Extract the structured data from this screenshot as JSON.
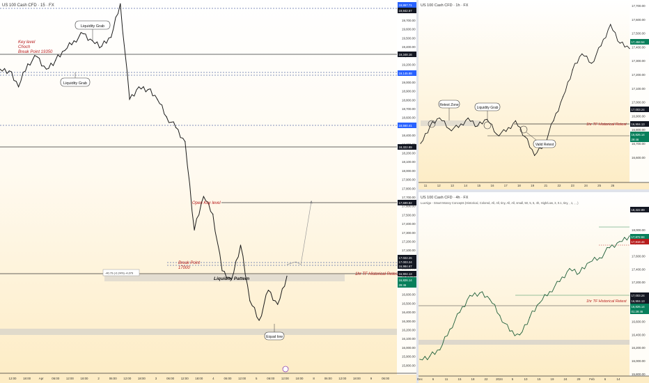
{
  "colors": {
    "candle": "#1a1a1a",
    "line": "#2b2b2b",
    "dashed_blue": "#5b6fa8",
    "red_text": "#b71c1c",
    "blue_tag": "#2962ff",
    "green_tag": "#087f5b",
    "dark_tag": "#131722",
    "zone": "#c8c8c8",
    "green_line": "#2e8b57"
  },
  "main": {
    "title": "US 100 Cash CFD · 15 · FX",
    "yticks": [
      "19,700.00",
      "19,600.00",
      "19,500.00",
      "19,400.00",
      "19,300.00",
      "19,200.00",
      "19,100.00",
      "19,000.00",
      "18,900.00",
      "18,800.00",
      "18,700.00",
      "18,600.00",
      "18,500.00",
      "18,400.00",
      "18,300.00",
      "18,200.00",
      "18,100.00",
      "18,000.00",
      "17,900.00",
      "17,800.00",
      "17,700.00",
      "17,600.00",
      "17,500.00",
      "17,400.00",
      "17,300.00",
      "17,200.00",
      "17,100.00",
      "17,000.00",
      "16,900.00",
      "16,800.00",
      "16,700.00",
      "16,600.00",
      "16,500.00",
      "16,400.00",
      "16,300.00",
      "16,200.00",
      "16,100.00",
      "16,000.00",
      "15,900.00",
      "15,800.00"
    ],
    "xticks": [
      "12:00",
      "18:00",
      "Apr",
      "06:00",
      "12:00",
      "18:00",
      "2",
      "06:00",
      "12:00",
      "18:00",
      "3",
      "06:00",
      "12:00",
      "18:00",
      "4",
      "06:00",
      "12:00",
      "5",
      "06:00",
      "12:00",
      "18:00",
      "8",
      "06:00",
      "12:00",
      "18:00",
      "9",
      "06:00"
    ],
    "price_tags": {
      "t1": "19,867.71",
      "t2": "19,842.57",
      "t3": "19,348.16",
      "t4": "19,145.88",
      "t5": "18,560.41",
      "t6": "18,322.89",
      "t7": "17,699.82",
      "t8": "17,022.26",
      "t9": "17,003.24",
      "t10": "16,984.67",
      "t11": "16,904.13",
      "t12": "16,826.14",
      "t12b": "29:46"
    },
    "annotations": {
      "liq_grab_top": "Liquidity Grab",
      "liq_grab_left": "Liquidity Grab",
      "key_level": "Key level",
      "choch": "Choch",
      "break_point": "Break Point  19350",
      "open_key_level": "Open Key level",
      "break_point2": "Break Point",
      "break_val": "17000",
      "hist_retest": "1hr TF Historical Retest",
      "liq_pattern": "Liquidity Pattern",
      "equal_low": "Equal low",
      "measure": "-40.79 (-0.24%) -4,079"
    }
  },
  "top_right": {
    "title": "US 100 Cash CFD · 1h · FX",
    "yticks": [
      "17,700.00",
      "17,600.00",
      "17,500.00",
      "17,400.00",
      "17,300.00",
      "17,200.00",
      "17,100.00",
      "17,000.00",
      "16,900.00",
      "16,800.00",
      "16,700.00",
      "16,600.00"
    ],
    "xticks": [
      "11",
      "12",
      "13",
      "14",
      "15",
      "16",
      "17",
      "18",
      "19",
      "21",
      "22",
      "23",
      "24",
      "25",
      "26"
    ],
    "price_tags": {
      "a": "17,458.54",
      "b": "17,003.24",
      "c": "16,904.13",
      "d": "16,826.14",
      "d2": "29:46"
    },
    "annotations": {
      "retest_zone": "Retest Zone",
      "liq_grab": "Liquidity Grab",
      "valid_retest": "Valid Retest",
      "hist_retest": "1hr TF Historical Retest"
    }
  },
  "bottom_right": {
    "title": "US 100 Cash CFD · 4h · FX",
    "subtitle": "LuxAlgo - Smart Money Concepts (Historical, Colored, All, All, tiny, All, All, small, 50, 5, 5, 4h, High/Low, 3, 0.1, tiny, , 1, ,  ,  )",
    "yticks": [
      "18,000.00",
      "17,800.00",
      "17,600.00",
      "17,400.00",
      "17,200.00",
      "17,000.00",
      "16,800.00",
      "16,600.00",
      "16,400.00",
      "16,200.00",
      "16,000.00",
      "15,800.00"
    ],
    "xticks": [
      "Dec",
      "6",
      "11",
      "15",
      "18",
      "22",
      "2024",
      "5",
      "10",
      "15",
      "19",
      "24",
      "29",
      "Feb",
      "6",
      "14"
    ],
    "price_tags": {
      "a": "18,322.89",
      "b": "17,872.84",
      "c": "17,818.44",
      "d": "17,003.24",
      "e": "16,904.13",
      "f": "16,826.14",
      "f2": "01:29:46"
    },
    "annotations": {
      "hist_retest": "1hr TF Historical Retest"
    }
  },
  "chart_data": [
    {
      "type": "line",
      "title": "US 100 Cash CFD · 15 · FX",
      "ylim": [
        15800,
        19800
      ],
      "x": [
        0,
        2,
        4,
        6,
        8,
        10,
        12,
        14,
        16,
        18,
        20,
        22,
        24,
        26,
        28,
        30,
        32,
        34,
        36,
        38,
        40,
        42,
        44,
        46,
        48,
        50,
        52,
        54,
        56,
        58,
        60,
        62
      ],
      "values": [
        19160,
        19140,
        18960,
        19220,
        19300,
        19160,
        19260,
        19370,
        19480,
        19560,
        19480,
        19420,
        19520,
        19900,
        18820,
        18960,
        18930,
        18820,
        18620,
        18500,
        18340,
        17340,
        17720,
        17520,
        16880,
        16780,
        17170,
        16540,
        16320,
        16660,
        16500,
        16820
      ]
    },
    {
      "type": "line",
      "title": "US 100 Cash CFD · 1h · FX",
      "ylim": [
        16500,
        17750
      ],
      "x": [
        0,
        1,
        2,
        3,
        4,
        5,
        6,
        7,
        8,
        9,
        10,
        11,
        12,
        13,
        14,
        15,
        16,
        17,
        18,
        19,
        20,
        21,
        22
      ],
      "values": [
        16750,
        16880,
        16940,
        16860,
        16870,
        16940,
        16880,
        16930,
        16820,
        16840,
        16920,
        16800,
        16660,
        16740,
        16920,
        17100,
        17300,
        17420,
        17350,
        17480,
        17640,
        17500,
        17460
      ]
    },
    {
      "type": "line",
      "title": "US 100 Cash CFD · 4h · FX",
      "ylim": [
        15700,
        18100
      ],
      "x": [
        0,
        1,
        2,
        3,
        4,
        5,
        6,
        7,
        8,
        9,
        10,
        11,
        12,
        13,
        14,
        15,
        16,
        17,
        18,
        19,
        20,
        21
      ],
      "values": [
        15900,
        15950,
        16050,
        16380,
        16650,
        16920,
        16960,
        16860,
        16600,
        16350,
        16290,
        16570,
        16800,
        16980,
        17140,
        17350,
        17280,
        17450,
        17520,
        17680,
        17780,
        17870
      ]
    }
  ]
}
